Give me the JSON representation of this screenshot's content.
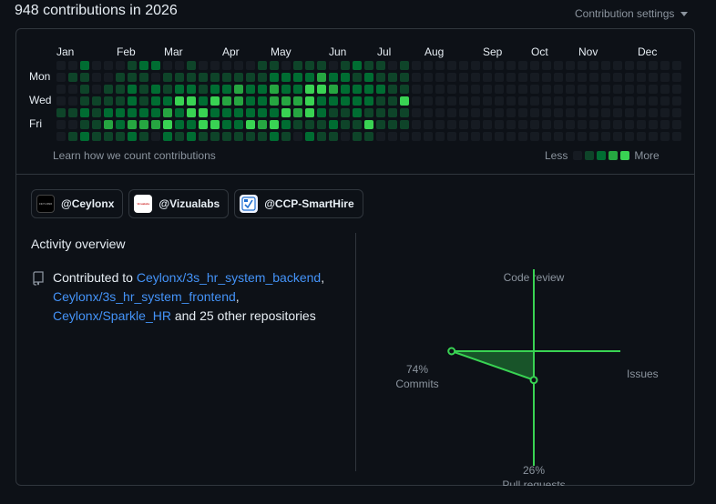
{
  "header": {
    "title": "948 contributions in 2026",
    "settings_label": "Contribution settings"
  },
  "graph": {
    "months": [
      "Jan",
      "Feb",
      "Mar",
      "Apr",
      "May",
      "Jun",
      "Jul",
      "Aug",
      "Sep",
      "Oct",
      "Nov",
      "Dec"
    ],
    "days": [
      "Mon",
      "Wed",
      "Fri"
    ],
    "learn_link": "Learn how we count contributions",
    "legend_less": "Less",
    "legend_more": "More",
    "colors": [
      "#161b22",
      "#0e4429",
      "#006d32",
      "#26a641",
      "#39d353"
    ],
    "weeks": [
      [
        0,
        0,
        0,
        0,
        1,
        0,
        0
      ],
      [
        0,
        1,
        0,
        0,
        1,
        0,
        1
      ],
      [
        2,
        1,
        1,
        1,
        2,
        1,
        2
      ],
      [
        0,
        0,
        0,
        1,
        1,
        1,
        1
      ],
      [
        0,
        0,
        1,
        1,
        2,
        3,
        1
      ],
      [
        0,
        1,
        1,
        1,
        2,
        2,
        1
      ],
      [
        1,
        1,
        2,
        2,
        2,
        3,
        2
      ],
      [
        2,
        1,
        1,
        1,
        2,
        3,
        1
      ],
      [
        2,
        0,
        2,
        2,
        2,
        3,
        0
      ],
      [
        0,
        1,
        1,
        2,
        3,
        4,
        2
      ],
      [
        0,
        1,
        2,
        4,
        2,
        2,
        1
      ],
      [
        1,
        1,
        2,
        4,
        4,
        2,
        2
      ],
      [
        0,
        1,
        1,
        2,
        4,
        4,
        1
      ],
      [
        0,
        1,
        2,
        4,
        2,
        4,
        1
      ],
      [
        0,
        1,
        2,
        3,
        2,
        2,
        1
      ],
      [
        0,
        1,
        3,
        3,
        2,
        2,
        1
      ],
      [
        0,
        1,
        2,
        2,
        2,
        4,
        1
      ],
      [
        1,
        1,
        2,
        2,
        2,
        3,
        1
      ],
      [
        1,
        2,
        3,
        3,
        2,
        4,
        2
      ],
      [
        0,
        2,
        2,
        3,
        4,
        2,
        1
      ],
      [
        1,
        2,
        2,
        3,
        3,
        1,
        0
      ],
      [
        1,
        2,
        4,
        4,
        4,
        1,
        2
      ],
      [
        1,
        3,
        4,
        2,
        2,
        1,
        1
      ],
      [
        0,
        2,
        3,
        2,
        1,
        2,
        1
      ],
      [
        1,
        2,
        2,
        2,
        1,
        1,
        0
      ],
      [
        2,
        1,
        2,
        2,
        2,
        1,
        1
      ],
      [
        1,
        2,
        2,
        2,
        1,
        4,
        1
      ],
      [
        1,
        1,
        2,
        1,
        1,
        1,
        0
      ],
      [
        0,
        1,
        1,
        1,
        1,
        1,
        0
      ],
      [
        1,
        1,
        1,
        4,
        1,
        1,
        0
      ],
      [
        0,
        0,
        0,
        0,
        0,
        0,
        0
      ],
      [
        0,
        0,
        0,
        0,
        0,
        0,
        0
      ],
      [
        0,
        0,
        0,
        0,
        0,
        0,
        0
      ],
      [
        0,
        0,
        0,
        0,
        0,
        0,
        0
      ],
      [
        0,
        0,
        0,
        0,
        0,
        0,
        0
      ],
      [
        0,
        0,
        0,
        0,
        0,
        0,
        0
      ],
      [
        0,
        0,
        0,
        0,
        0,
        0,
        0
      ],
      [
        0,
        0,
        0,
        0,
        0,
        0,
        0
      ],
      [
        0,
        0,
        0,
        0,
        0,
        0,
        0
      ],
      [
        0,
        0,
        0,
        0,
        0,
        0,
        0
      ],
      [
        0,
        0,
        0,
        0,
        0,
        0,
        0
      ],
      [
        0,
        0,
        0,
        0,
        0,
        0,
        0
      ],
      [
        0,
        0,
        0,
        0,
        0,
        0,
        0
      ],
      [
        0,
        0,
        0,
        0,
        0,
        0,
        0
      ],
      [
        0,
        0,
        0,
        0,
        0,
        0,
        0
      ],
      [
        0,
        0,
        0,
        0,
        0,
        0,
        0
      ],
      [
        0,
        0,
        0,
        0,
        0,
        0,
        0
      ],
      [
        0,
        0,
        0,
        0,
        0,
        0,
        0
      ],
      [
        0,
        0,
        0,
        0,
        0,
        0,
        0
      ],
      [
        0,
        0,
        0,
        0,
        0,
        0,
        0
      ],
      [
        0,
        0,
        0,
        0,
        0,
        0,
        0
      ],
      [
        0,
        0,
        0,
        0,
        0,
        0,
        0
      ],
      [
        0,
        0,
        0,
        0,
        0,
        0,
        0
      ]
    ]
  },
  "orgs": [
    {
      "name": "@Ceylonx",
      "avatar_text": "CEYLONX"
    },
    {
      "name": "@Vizualabs",
      "avatar_text": "Vizualabs"
    },
    {
      "name": "@CCP-SmartHire",
      "avatar_text": ""
    }
  ],
  "activity": {
    "title": "Activity overview",
    "prefix": "Contributed to ",
    "repos": [
      "Ceylonx/3s_hr_system_backend",
      "Ceylonx/3s_hr_system_frontend",
      "Ceylonx/Sparkle_HR"
    ],
    "suffix": " and 25 other repositories",
    "sep1": ",",
    "sep2": ","
  },
  "radar": {
    "code_review_label": "Code review",
    "issues_label": "Issues",
    "commits_pct": "74%",
    "commits_label": "Commits",
    "pr_pct": "26%",
    "pr_label": "Pull requests",
    "values": {
      "commits": 74,
      "pull_requests": 26,
      "code_review": 0,
      "issues": 0
    },
    "accent": "#39d353"
  }
}
